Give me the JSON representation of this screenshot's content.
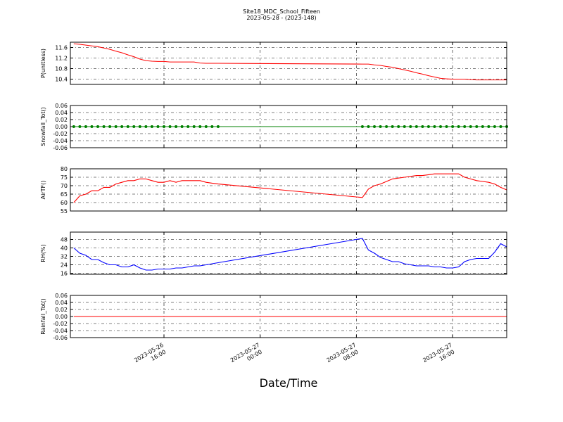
{
  "title": "Site18_MDC_School_Fifteen",
  "subtitle": "2023-05-28 - (2023-148)",
  "x_label": "Date/Time",
  "xlim": [
    "2023-05-26 08:13",
    "2023-05-27 20:30"
  ],
  "xticks": [
    "2023-05-26 16:00",
    "2023-05-27 00:00",
    "2023-05-27 08:00",
    "2023-05-27 16:00"
  ],
  "x": [
    "2023-05-26 08:30",
    "2023-05-26 09:00",
    "2023-05-26 09:30",
    "2023-05-26 10:00",
    "2023-05-26 10:30",
    "2023-05-26 11:00",
    "2023-05-26 11:30",
    "2023-05-26 12:00",
    "2023-05-26 12:30",
    "2023-05-26 13:00",
    "2023-05-26 13:30",
    "2023-05-26 14:00",
    "2023-05-26 14:30",
    "2023-05-26 15:00",
    "2023-05-26 15:30",
    "2023-05-26 16:00",
    "2023-05-26 16:30",
    "2023-05-26 17:00",
    "2023-05-26 17:30",
    "2023-05-26 18:00",
    "2023-05-26 18:30",
    "2023-05-26 19:00",
    "2023-05-26 19:30",
    "2023-05-26 20:00",
    "2023-05-26 20:30",
    "2023-05-27 08:30",
    "2023-05-27 09:00",
    "2023-05-27 09:30",
    "2023-05-27 10:00",
    "2023-05-27 10:30",
    "2023-05-27 11:00",
    "2023-05-27 11:30",
    "2023-05-27 12:00",
    "2023-05-27 12:30",
    "2023-05-27 13:00",
    "2023-05-27 13:30",
    "2023-05-27 14:00",
    "2023-05-27 14:30",
    "2023-05-27 15:00",
    "2023-05-27 15:30",
    "2023-05-27 16:00",
    "2023-05-27 16:30",
    "2023-05-27 17:00",
    "2023-05-27 17:30",
    "2023-05-27 18:00",
    "2023-05-27 18:30",
    "2023-05-27 19:00",
    "2023-05-27 19:30",
    "2023-05-27 20:00",
    "2023-05-27 20:30"
  ],
  "chart_data": [
    {
      "type": "line",
      "y_label": "P(unitless)",
      "ylim": [
        10.2,
        11.8
      ],
      "yticks": [
        10.4,
        10.8,
        11.2,
        11.6
      ],
      "grid": true,
      "series": [
        {
          "color": "#ff0000",
          "values": [
            11.74,
            11.72,
            11.69,
            11.66,
            11.63,
            11.58,
            11.53,
            11.46,
            11.4,
            11.32,
            11.25,
            11.16,
            11.1,
            11.08,
            11.07,
            11.07,
            11.05,
            11.05,
            11.05,
            11.05,
            11.05,
            11.01,
            11.0,
            11.0,
            11.0,
            10.97,
            10.97,
            10.94,
            10.92,
            10.88,
            10.85,
            10.8,
            10.75,
            10.7,
            10.64,
            10.59,
            10.53,
            10.48,
            10.43,
            10.41,
            10.4,
            10.4,
            10.4,
            10.38,
            10.37,
            10.37,
            10.37,
            10.37,
            10.37,
            10.37
          ]
        }
      ]
    },
    {
      "type": "line",
      "markers": true,
      "y_label": "Snowfall_Tot()",
      "ylim": [
        -0.06,
        0.06
      ],
      "yticks": [
        -0.06,
        -0.04,
        -0.02,
        {
          "value": 0,
          "label": "0.00"
        },
        0.02,
        0.04,
        0.06
      ],
      "grid": true,
      "series": [
        {
          "color": "#008000",
          "values": [
            0,
            0,
            0,
            0,
            0,
            0,
            0,
            0,
            0,
            0,
            0,
            0,
            0,
            0,
            0,
            0,
            0,
            0,
            0,
            0,
            0,
            0,
            0,
            0,
            0,
            0,
            0,
            0,
            0,
            0,
            0,
            0,
            0,
            0,
            0,
            0,
            0,
            0,
            0,
            0,
            0,
            0,
            0,
            0,
            0,
            0,
            0,
            0,
            0,
            0
          ]
        }
      ]
    },
    {
      "type": "line",
      "y_label": "AirTF()",
      "ylim": [
        55,
        80
      ],
      "yticks": [
        55,
        60,
        65,
        70,
        75,
        80
      ],
      "grid": true,
      "series": [
        {
          "color": "#ff0000",
          "values": [
            60,
            64,
            65,
            67,
            67,
            69,
            69,
            71,
            72,
            73,
            73,
            74,
            74,
            73,
            72,
            72,
            73,
            72,
            73,
            73,
            73,
            73,
            72,
            71.5,
            71,
            63,
            68,
            70,
            71,
            72.5,
            74,
            74.5,
            75,
            75.5,
            76,
            76,
            76.5,
            77,
            77,
            77,
            77,
            77,
            75,
            74,
            73,
            72.5,
            72,
            71,
            69,
            67.5
          ]
        }
      ]
    },
    {
      "type": "line",
      "y_label": "RH(%)",
      "ylim": [
        15,
        55
      ],
      "yticks": [
        16,
        24,
        32,
        40,
        48
      ],
      "grid": true,
      "series": [
        {
          "color": "#0000ff",
          "values": [
            40,
            35,
            33,
            29,
            29,
            26,
            24,
            24,
            22,
            22,
            24,
            21,
            19,
            19,
            20,
            20,
            20,
            21,
            21,
            22,
            23,
            23,
            24,
            25,
            26,
            49,
            38,
            35,
            31,
            29,
            27,
            27,
            25,
            24,
            23,
            23,
            23,
            22,
            22,
            21,
            21,
            22,
            27,
            29,
            30,
            30,
            30,
            36,
            44,
            41
          ]
        }
      ]
    },
    {
      "type": "line",
      "y_label": "Rainfall_Tot()",
      "ylim": [
        -0.06,
        0.06
      ],
      "yticks": [
        -0.06,
        -0.04,
        -0.02,
        {
          "value": 0,
          "label": "0.00"
        },
        0.02,
        0.04,
        0.06
      ],
      "grid": true,
      "series": [
        {
          "color": "#ff0000",
          "values": [
            0,
            0,
            0,
            0,
            0,
            0,
            0,
            0,
            0,
            0,
            0,
            0,
            0,
            0,
            0,
            0,
            0,
            0,
            0,
            0,
            0,
            0,
            0,
            0,
            0,
            0,
            0,
            0,
            0,
            0,
            0,
            0,
            0,
            0,
            0,
            0,
            0,
            0,
            0,
            0,
            0,
            0,
            0,
            0,
            0,
            0,
            0,
            0,
            0,
            0
          ]
        }
      ]
    }
  ]
}
